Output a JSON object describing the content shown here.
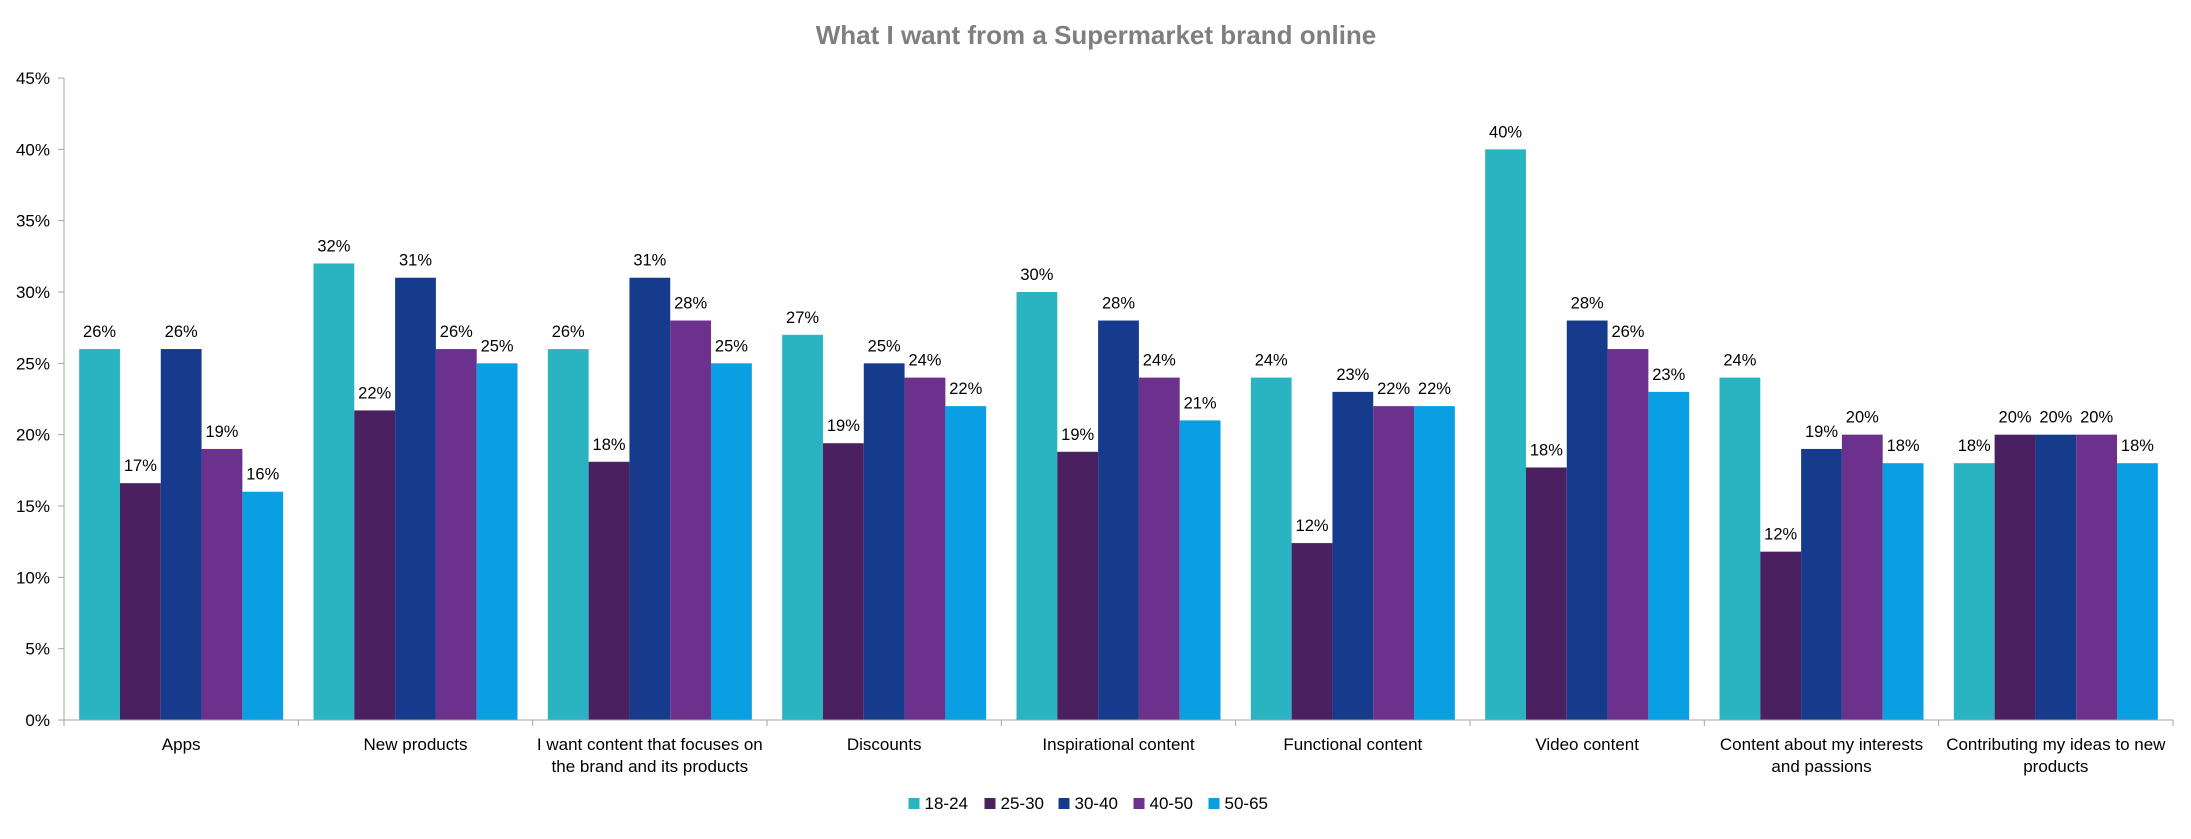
{
  "chart_data": {
    "type": "bar",
    "title": "What I want from a Supermarket brand online",
    "xlabel": "",
    "ylabel": "",
    "ylim": [
      0,
      45
    ],
    "yticks": [
      "0%",
      "5%",
      "10%",
      "15%",
      "20%",
      "25%",
      "30%",
      "35%",
      "40%",
      "45%"
    ],
    "y_tick_values": [
      0,
      5,
      10,
      15,
      20,
      25,
      30,
      35,
      40,
      45
    ],
    "grid": false,
    "legend_position": "bottom",
    "categories": [
      [
        "Apps"
      ],
      [
        "New products"
      ],
      [
        "I want content that focuses on",
        "the brand and its products"
      ],
      [
        "Discounts"
      ],
      [
        "Inspirational content"
      ],
      [
        "Functional content"
      ],
      [
        "Video content"
      ],
      [
        "Content about my interests",
        "and passions"
      ],
      [
        "Contributing my ideas to new",
        "products"
      ]
    ],
    "series": [
      {
        "name": "18-24",
        "color": "#2ab4c2",
        "values": [
          26,
          32,
          26,
          27,
          30,
          24,
          40,
          24,
          18
        ],
        "labels": [
          "26%",
          "32%",
          "26%",
          "27%",
          "30%",
          "24%",
          "40%",
          "24%",
          "18%"
        ]
      },
      {
        "name": "25-30",
        "color": "#4a2060",
        "values": [
          16.6,
          21.7,
          18.1,
          19.4,
          18.8,
          12.4,
          17.7,
          11.8,
          20
        ],
        "labels": [
          "17%",
          "22%",
          "18%",
          "19%",
          "19%",
          "12%",
          "18%",
          "12%",
          "20%"
        ]
      },
      {
        "name": "30-40",
        "color": "#173b8c",
        "values": [
          26,
          31,
          31,
          25,
          28,
          23,
          28,
          19,
          20
        ],
        "labels": [
          "26%",
          "31%",
          "31%",
          "25%",
          "28%",
          "23%",
          "28%",
          "19%",
          "20%"
        ]
      },
      {
        "name": "40-50",
        "color": "#6b318c",
        "values": [
          19,
          26,
          28,
          24,
          24,
          22,
          26,
          20,
          20
        ],
        "labels": [
          "19%",
          "26%",
          "28%",
          "24%",
          "24%",
          "22%",
          "26%",
          "20%",
          "20%"
        ]
      },
      {
        "name": "50-65",
        "color": "#0a9ee2",
        "values": [
          16,
          25,
          25,
          22,
          21,
          22,
          23,
          18,
          18
        ],
        "labels": [
          "16%",
          "25%",
          "25%",
          "22%",
          "21%",
          "22%",
          "23%",
          "18%",
          "18%"
        ]
      }
    ]
  }
}
